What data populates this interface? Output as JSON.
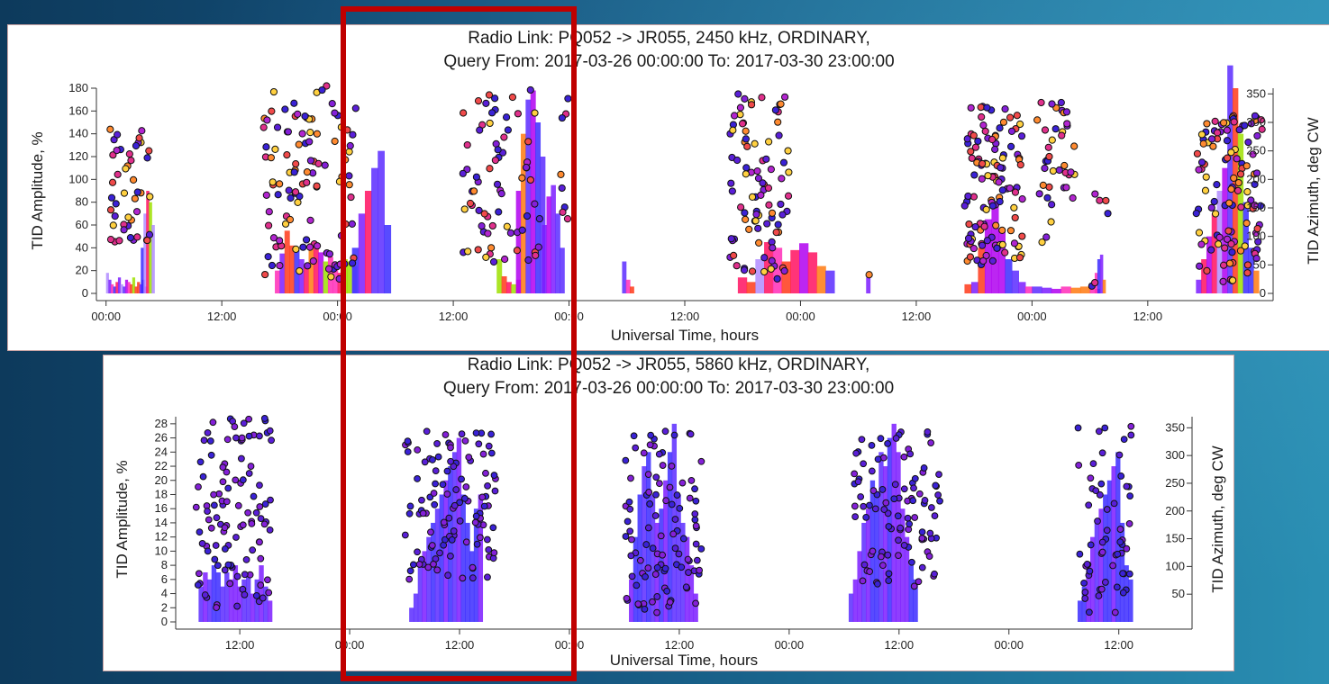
{
  "chart_data": [
    {
      "type": "scatter",
      "title": "Radio Link: PQ052 -> JR055, 2450 kHz, ORDINARY,",
      "subtitle": "Query From: 2017-03-26 00:00:00 To: 2017-03-30 23:00:00",
      "xlabel": "Universal Time, hours",
      "ylabel": "TID Amplitude, %",
      "y2label": "TID Azimuth, deg CW",
      "ylim": [
        0,
        180
      ],
      "y2lim": [
        0,
        360
      ],
      "xticks": [
        "00:00",
        "12:00",
        "00:00",
        "12:00",
        "00:00",
        "12:00",
        "00:00",
        "12:00",
        "00:00",
        "12:00"
      ],
      "yticks": [
        0,
        20,
        40,
        60,
        80,
        100,
        120,
        140,
        160,
        180
      ],
      "y2ticks": [
        0,
        50,
        100,
        150,
        200,
        250,
        300,
        350
      ],
      "bar_clusters": [
        {
          "start": 0.0,
          "end": 4.2,
          "heights": [
            18,
            12,
            8,
            6,
            10,
            14,
            8,
            6,
            12,
            10,
            8,
            14,
            6,
            10,
            8,
            12,
            6
          ]
        },
        {
          "start": 3.6,
          "end": 5.0,
          "heights": [
            40,
            70,
            90,
            80,
            60
          ]
        },
        {
          "start": 17.5,
          "end": 26.0,
          "heights": [
            20,
            35,
            55,
            42,
            38,
            30,
            25,
            44,
            40,
            36,
            28,
            32,
            22,
            18,
            30,
            28,
            24
          ]
        },
        {
          "start": 25.5,
          "end": 29.5,
          "heights": [
            40,
            70,
            90,
            110,
            125,
            60
          ]
        },
        {
          "start": 40.5,
          "end": 43.0,
          "heights": [
            30,
            15,
            10,
            8,
            12
          ]
        },
        {
          "start": 42.5,
          "end": 45.5,
          "heights": [
            90,
            140,
            170,
            178,
            150,
            120
          ]
        },
        {
          "start": 45.2,
          "end": 47.5,
          "heights": [
            60,
            85,
            95,
            70,
            40
          ]
        },
        {
          "start": 53.5,
          "end": 54.7,
          "heights": [
            28,
            12,
            6
          ]
        },
        {
          "start": 65.5,
          "end": 75.5,
          "heights": [
            14,
            10,
            30,
            45,
            40,
            28,
            38,
            44,
            36,
            24,
            20
          ]
        },
        {
          "start": 78.8,
          "end": 79.2,
          "heights": [
            14
          ]
        },
        {
          "start": 89.0,
          "end": 96.0,
          "heights": [
            8,
            10,
            40,
            65,
            80,
            55,
            30,
            20,
            10,
            6
          ]
        },
        {
          "start": 96.0,
          "end": 103.0,
          "heights": [
            6,
            5,
            4,
            6,
            5,
            6,
            4
          ]
        },
        {
          "start": 102.5,
          "end": 103.6,
          "heights": [
            18,
            30,
            34,
            12
          ]
        },
        {
          "start": 113.0,
          "end": 119.5,
          "heights": [
            12,
            30,
            50,
            70,
            90,
            110,
            200,
            180,
            140,
            80,
            40,
            20
          ]
        }
      ],
      "point_clusters": [
        {
          "start": 0.3,
          "end": 4.6,
          "y_min": 45,
          "y_max": 150,
          "count": 45
        },
        {
          "start": 16.2,
          "end": 26.0,
          "y_min": 10,
          "y_max": 182,
          "count": 110
        },
        {
          "start": 37.0,
          "end": 45.0,
          "y_min": 25,
          "y_max": 180,
          "count": 70
        },
        {
          "start": 47.0,
          "end": 48.0,
          "y_min": 60,
          "y_max": 180,
          "count": 8
        },
        {
          "start": 64.3,
          "end": 70.8,
          "y_min": 10,
          "y_max": 175,
          "count": 90
        },
        {
          "start": 78.5,
          "end": 79.5,
          "y_min": 15,
          "y_max": 18,
          "count": 1
        },
        {
          "start": 89.0,
          "end": 95.0,
          "y_min": 25,
          "y_max": 165,
          "count": 120
        },
        {
          "start": 96.5,
          "end": 100.5,
          "y_min": 40,
          "y_max": 168,
          "count": 40
        },
        {
          "start": 102.0,
          "end": 104.0,
          "y_min": 5,
          "y_max": 90,
          "count": 6
        },
        {
          "start": 113.0,
          "end": 120.0,
          "y_min": 10,
          "y_max": 160,
          "count": 110
        }
      ]
    },
    {
      "type": "scatter",
      "title": "Radio Link: PQ052 -> JR055, 5860 kHz, ORDINARY,",
      "subtitle": "Query From: 2017-03-26 00:00:00 To: 2017-03-30 23:00:00",
      "xlabel": "Universal Time, hours",
      "ylabel": "TID Amplitude, %",
      "y2label": "TID Azimuth, deg CW",
      "ylim": [
        0,
        29
      ],
      "y2lim": [
        0,
        370
      ],
      "xticks": [
        "12:00",
        "00:00",
        "12:00",
        "00:00",
        "12:00",
        "00:00",
        "12:00",
        "00:00",
        "12:00"
      ],
      "yticks": [
        0,
        2,
        4,
        6,
        8,
        10,
        12,
        14,
        16,
        18,
        20,
        22,
        24,
        26,
        28
      ],
      "y2ticks": [
        50,
        100,
        150,
        200,
        250,
        300,
        350
      ],
      "bar_clusters": [
        {
          "start": 7.5,
          "end": 15.5,
          "heights": [
            5,
            7,
            6,
            8,
            7,
            5,
            7,
            6,
            8,
            5,
            6,
            7,
            4,
            6,
            8,
            5,
            3
          ]
        },
        {
          "start": 30.5,
          "end": 38.5,
          "heights": [
            2,
            4,
            8,
            10,
            12,
            14,
            16,
            18,
            20,
            22,
            24,
            26,
            18,
            14,
            10,
            16,
            18
          ]
        },
        {
          "start": 54.5,
          "end": 62.0,
          "heights": [
            6,
            12,
            18,
            22,
            24,
            18,
            14,
            16,
            20,
            24,
            28,
            18,
            14,
            12,
            8,
            4
          ]
        },
        {
          "start": 78.5,
          "end": 86.0,
          "heights": [
            4,
            6,
            10,
            14,
            16,
            20,
            18,
            24,
            22,
            26,
            28,
            24,
            16,
            12,
            8,
            6
          ]
        },
        {
          "start": 103.5,
          "end": 109.5,
          "heights": [
            3,
            5,
            8,
            12,
            14,
            16,
            18,
            20,
            22,
            24,
            14,
            8,
            6
          ]
        }
      ],
      "point_clusters": [
        {
          "start": 7.2,
          "end": 15.5,
          "y_min": 2,
          "y_max": 29,
          "count": 110
        },
        {
          "start": 30.0,
          "end": 40.0,
          "y_min": 6,
          "y_max": 27,
          "count": 110
        },
        {
          "start": 54.0,
          "end": 62.5,
          "y_min": 1,
          "y_max": 27,
          "count": 100
        },
        {
          "start": 79.0,
          "end": 88.5,
          "y_min": 5,
          "y_max": 27,
          "count": 100
        },
        {
          "start": 103.5,
          "end": 109.5,
          "y_min": 1,
          "y_max": 28,
          "count": 60
        }
      ]
    }
  ]
}
